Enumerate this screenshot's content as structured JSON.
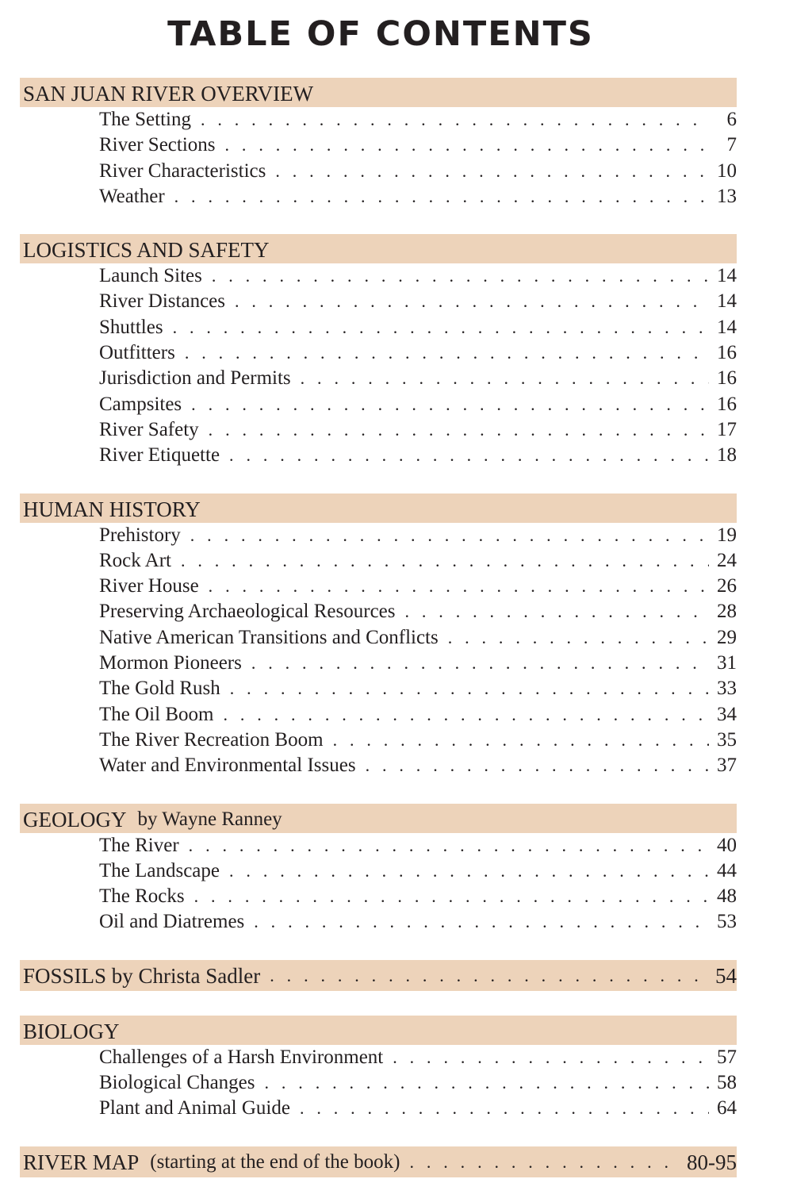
{
  "title": "TABLE OF CONTENTS",
  "colors": {
    "band": "#edd3ba",
    "text": "#231f20"
  },
  "sections": [
    {
      "heading": "SAN JUAN RIVER OVERVIEW",
      "entries": [
        {
          "label": "The Setting",
          "page": "6"
        },
        {
          "label": "River Sections",
          "page": "7"
        },
        {
          "label": "River Characteristics",
          "page": "10"
        },
        {
          "label": "Weather",
          "page": "13"
        }
      ]
    },
    {
      "heading": "LOGISTICS AND SAFETY",
      "entries": [
        {
          "label": "Launch Sites",
          "page": "14"
        },
        {
          "label": "River Distances",
          "page": "14"
        },
        {
          "label": "Shuttles",
          "page": "14"
        },
        {
          "label": "Outfitters",
          "page": "16"
        },
        {
          "label": "Jurisdiction and Permits",
          "page": "16"
        },
        {
          "label": "Campsites",
          "page": "16"
        },
        {
          "label": "River Safety",
          "page": "17"
        },
        {
          "label": "River Etiquette",
          "page": "18"
        }
      ]
    },
    {
      "heading": "HUMAN HISTORY",
      "entries": [
        {
          "label": "Prehistory",
          "page": "19"
        },
        {
          "label": "Rock Art",
          "page": "24"
        },
        {
          "label": "River House",
          "page": "26"
        },
        {
          "label": "Preserving Archaeological Resources",
          "page": "28"
        },
        {
          "label": "Native American Transitions and Conflicts",
          "page": "29"
        },
        {
          "label": "Mormon Pioneers",
          "page": "31"
        },
        {
          "label": "The Gold Rush",
          "page": "33"
        },
        {
          "label": "The Oil Boom",
          "page": "34"
        },
        {
          "label": "The River Recreation Boom",
          "page": "35"
        },
        {
          "label": "Water and Environmental Issues",
          "page": "37"
        }
      ]
    },
    {
      "heading": "GEOLOGY",
      "byline": "by Wayne Ranney",
      "entries": [
        {
          "label": "The River",
          "page": "40"
        },
        {
          "label": "The Landscape",
          "page": "44"
        },
        {
          "label": "The Rocks",
          "page": "48"
        },
        {
          "label": "Oil and Diatremes",
          "page": "53"
        }
      ]
    },
    {
      "heading": "FOSSILS by Christa Sadler",
      "page": "54",
      "entries": []
    },
    {
      "heading": "BIOLOGY",
      "entries": [
        {
          "label": "Challenges of a Harsh Environment",
          "page": "57"
        },
        {
          "label": "Biological Changes",
          "page": "58"
        },
        {
          "label": "Plant and Animal Guide",
          "page": "64"
        }
      ]
    },
    {
      "heading": "RIVER MAP",
      "byline": "(starting at the end of the book)",
      "page": "80-95",
      "entries": []
    }
  ]
}
